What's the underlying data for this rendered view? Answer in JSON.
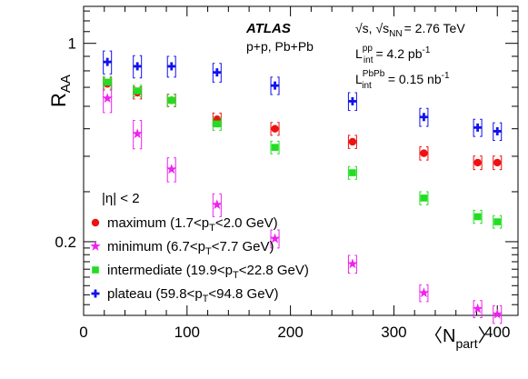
{
  "chart_data": {
    "type": "scatter",
    "title": "",
    "experiment": "ATLAS",
    "systems": "p+p, Pb+Pb",
    "energy_label": "√s, √s",
    "energy_sub": "NN",
    "energy_value": "= 2.76 TeV",
    "lumi_pp": {
      "L": "L",
      "sup": "pp",
      "sub": "int",
      "value": "= 4.2 pb",
      "unit_sup": "-1"
    },
    "lumi_pbpb": {
      "L": "L",
      "sup": "PbPb",
      "sub": "int",
      "value": "= 0.15 nb",
      "unit_sup": "-1"
    },
    "eta_cut": "|η| < 2",
    "xlabel": "〈N",
    "xlabel_sub": "part",
    "xlabel_close": "〉",
    "ylabel": "R",
    "ylabel_sub": "AA",
    "xlim": [
      0,
      420
    ],
    "ylim": [
      0.11,
      1.35
    ],
    "y_scale": "log",
    "x_ticks": [
      0,
      100,
      200,
      300,
      400
    ],
    "y_ticks": [
      0.2,
      1
    ],
    "y_tick_labels": [
      "0.2",
      "1"
    ],
    "grid": false,
    "legend_position": "bottom-left",
    "x": [
      23,
      52,
      85,
      129,
      185,
      260,
      329,
      381,
      400
    ],
    "series": [
      {
        "name": "maximum (1.7<p",
        "name_sub": "T",
        "name_tail": "<2.0 GeV)",
        "marker": "circle",
        "color": "#ee1111",
        "values": [
          0.72,
          0.67,
          0.63,
          0.54,
          0.5,
          0.45,
          0.41,
          0.38,
          0.38
        ],
        "sys_err": [
          0.035,
          0.033,
          0.032,
          0.028,
          0.026,
          0.024,
          0.022,
          0.021,
          0.021
        ]
      },
      {
        "name": "minimum (6.7<p",
        "name_sub": "T",
        "name_tail": "<7.7 GeV)",
        "marker": "star",
        "color": "#ee22ee",
        "values": [
          0.64,
          0.48,
          0.36,
          0.27,
          0.205,
          0.167,
          0.132,
          0.116,
          0.111
        ],
        "sys_err": [
          0.07,
          0.055,
          0.035,
          0.025,
          0.015,
          0.012,
          0.009,
          0.008,
          0.008
        ]
      },
      {
        "name": "intermediate (19.9<p",
        "name_sub": "T",
        "name_tail": "<22.8 GeV)",
        "marker": "square",
        "color": "#22dd22",
        "values": [
          0.73,
          0.68,
          0.63,
          0.52,
          0.43,
          0.35,
          0.285,
          0.245,
          0.235
        ],
        "sys_err": [
          0.035,
          0.032,
          0.03,
          0.026,
          0.022,
          0.018,
          0.015,
          0.013,
          0.012
        ]
      },
      {
        "name": "plateau (59.8<p",
        "name_sub": "T",
        "name_tail": "<94.8 GeV)",
        "marker": "cross",
        "color": "#1111ee",
        "values": [
          0.86,
          0.83,
          0.83,
          0.79,
          0.71,
          0.625,
          0.55,
          0.505,
          0.49
        ],
        "sys_err": [
          0.08,
          0.075,
          0.07,
          0.06,
          0.05,
          0.045,
          0.04,
          0.035,
          0.035
        ]
      }
    ]
  }
}
